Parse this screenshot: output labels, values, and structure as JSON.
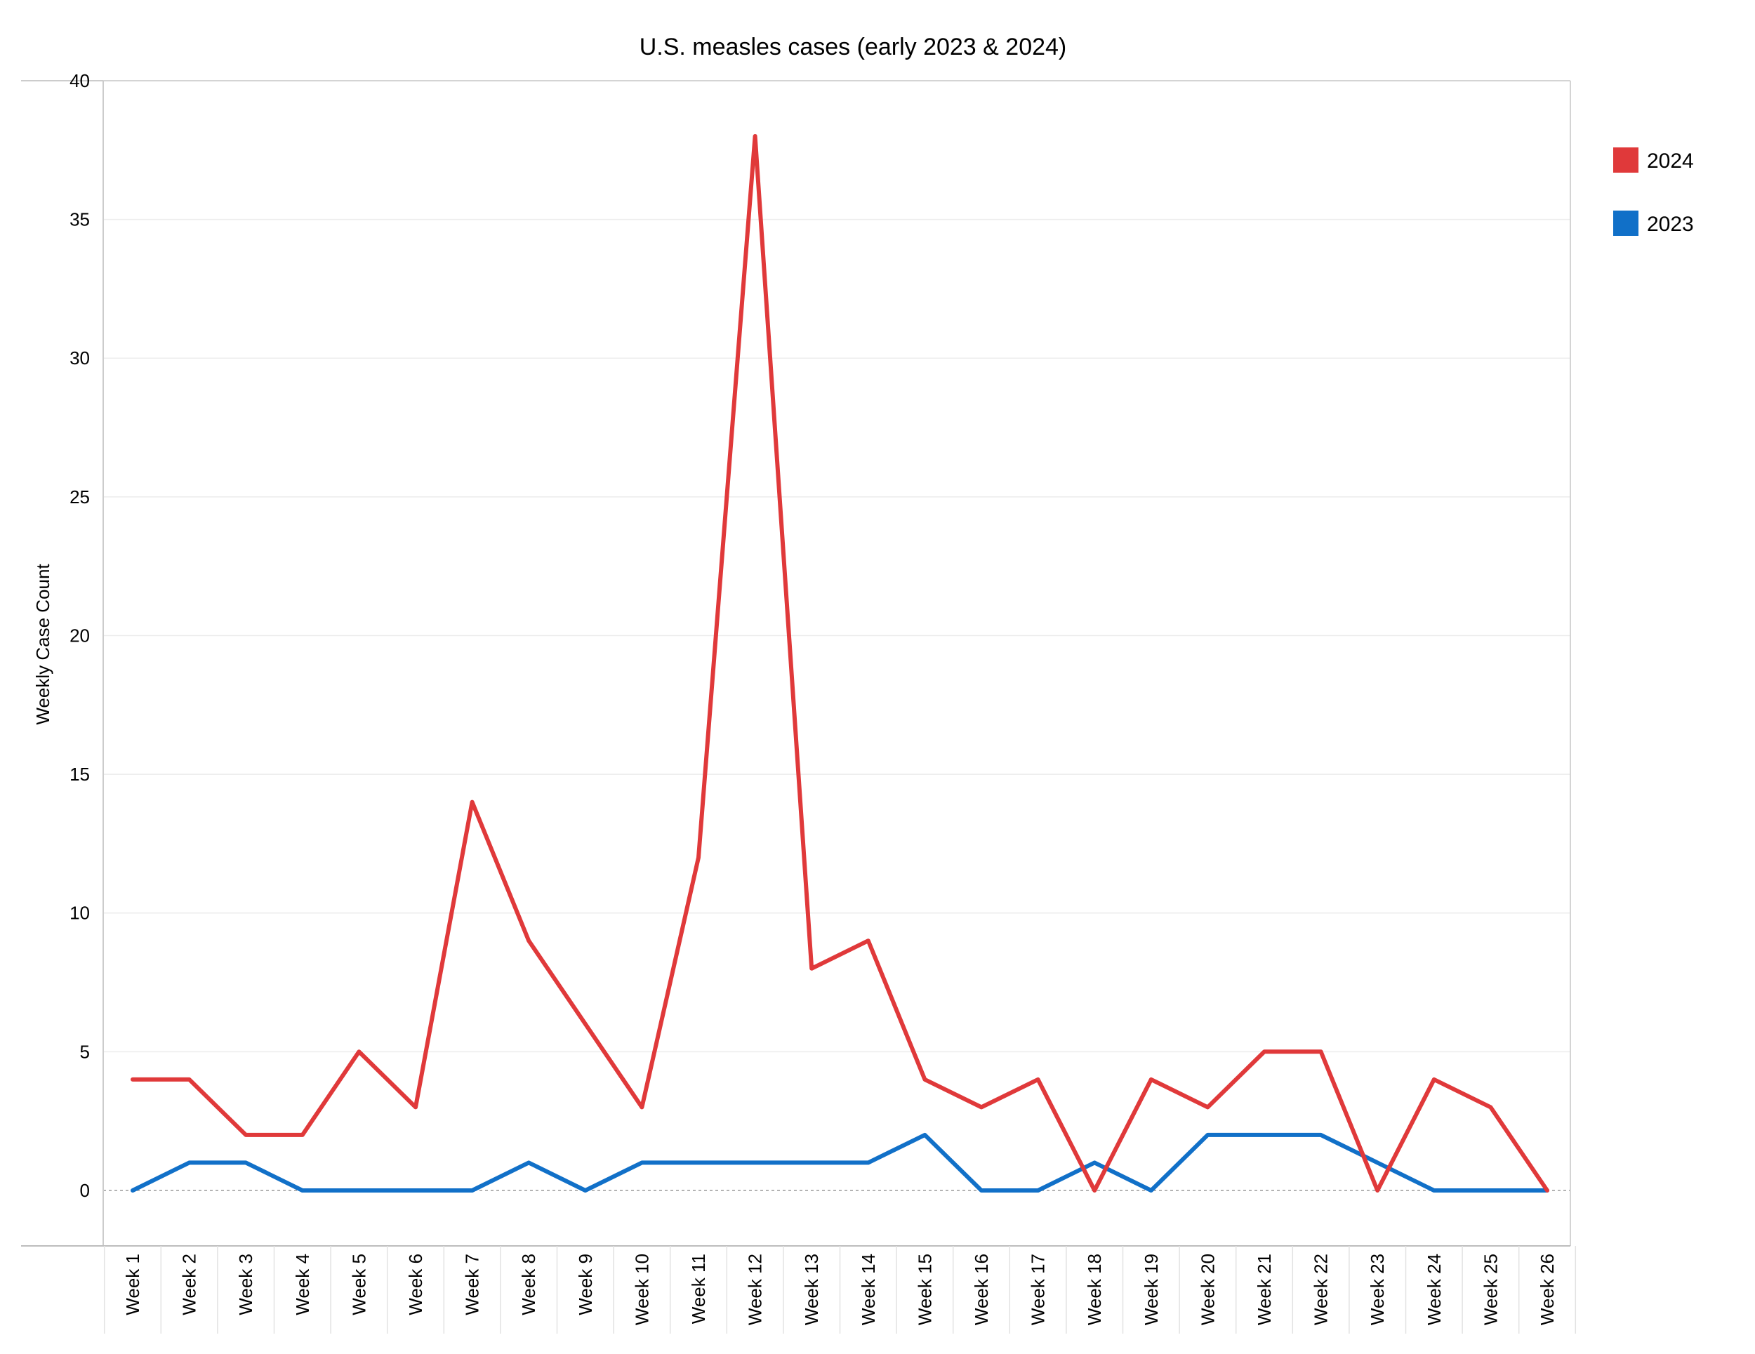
{
  "chart_data": {
    "type": "line",
    "title": "U.S. measles cases (early 2023 & 2024)",
    "xlabel": "",
    "ylabel": "Weekly Case Count",
    "ylim": [
      -2,
      40
    ],
    "yticks": [
      0,
      5,
      10,
      15,
      20,
      25,
      30,
      35,
      40
    ],
    "grid": true,
    "legend_position": "top-right",
    "categories": [
      "Week 1",
      "Week 2",
      "Week 3",
      "Week 4",
      "Week 5",
      "Week 6",
      "Week 7",
      "Week 8",
      "Week 9",
      "Week 10",
      "Week 11",
      "Week 12",
      "Week 13",
      "Week 14",
      "Week 15",
      "Week 16",
      "Week 17",
      "Week 18",
      "Week 19",
      "Week 20",
      "Week 21",
      "Week 22",
      "Week 23",
      "Week 24",
      "Week 25",
      "Week 26"
    ],
    "series": [
      {
        "name": "2024",
        "color": "#e0393a",
        "values": [
          4,
          4,
          2,
          2,
          5,
          3,
          14,
          9,
          6,
          3,
          12,
          38,
          8,
          9,
          4,
          3,
          4,
          0,
          4,
          3,
          5,
          5,
          0,
          4,
          3,
          0
        ]
      },
      {
        "name": "2023",
        "color": "#1170c8",
        "values": [
          0,
          1,
          1,
          0,
          0,
          0,
          0,
          1,
          0,
          1,
          1,
          1,
          1,
          1,
          2,
          0,
          0,
          1,
          0,
          2,
          2,
          2,
          1,
          0,
          0,
          0
        ]
      }
    ]
  }
}
